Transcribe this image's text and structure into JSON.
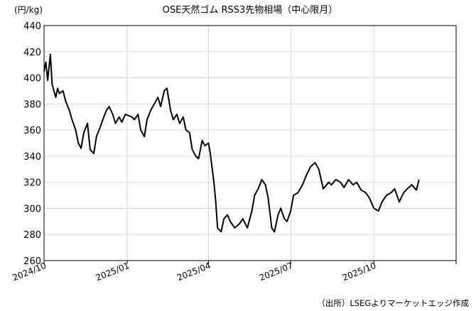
{
  "chart_data": {
    "type": "line",
    "title": "OSE天然ゴム RSS3先物相場（中心限月）",
    "ylabel": "(円/kg)",
    "xlabel": "",
    "source": "（出所）LSEGよりマーケットエッジ作成",
    "ylim": [
      260,
      440
    ],
    "yticks": [
      260,
      280,
      300,
      320,
      340,
      360,
      380,
      400,
      420,
      440
    ],
    "xlim": [
      "2024-10-01",
      "2025-12-31"
    ],
    "xticks": [
      {
        "date": "2024-10-01",
        "label": "2024/10"
      },
      {
        "date": "2025-01-01",
        "label": "2025/01"
      },
      {
        "date": "2025-04-01",
        "label": "2025/04"
      },
      {
        "date": "2025-07-01",
        "label": "2025/07"
      },
      {
        "date": "2025-10-01",
        "label": "2025/10"
      }
    ],
    "grid": true,
    "line_color": "#000000",
    "series": [
      {
        "name": "",
        "x": [
          "2024-10-01",
          "2024-10-03",
          "2024-10-05",
          "2024-10-08",
          "2024-10-10",
          "2024-10-14",
          "2024-10-16",
          "2024-10-18",
          "2024-10-22",
          "2024-10-25",
          "2024-10-29",
          "2024-11-01",
          "2024-11-05",
          "2024-11-08",
          "2024-11-11",
          "2024-11-14",
          "2024-11-18",
          "2024-11-21",
          "2024-11-25",
          "2024-11-28",
          "2024-12-02",
          "2024-12-05",
          "2024-12-09",
          "2024-12-12",
          "2024-12-16",
          "2024-12-19",
          "2024-12-23",
          "2024-12-26",
          "2024-12-30",
          "2025-01-06",
          "2025-01-09",
          "2025-01-13",
          "2025-01-16",
          "2025-01-20",
          "2025-01-23",
          "2025-01-27",
          "2025-01-31",
          "2025-02-04",
          "2025-02-07",
          "2025-02-11",
          "2025-02-14",
          "2025-02-18",
          "2025-02-21",
          "2025-02-25",
          "2025-02-28",
          "2025-03-04",
          "2025-03-07",
          "2025-03-11",
          "2025-03-14",
          "2025-03-18",
          "2025-03-21",
          "2025-03-25",
          "2025-03-28",
          "2025-04-01",
          "2025-04-03",
          "2025-04-07",
          "2025-04-09",
          "2025-04-11",
          "2025-04-15",
          "2025-04-18",
          "2025-04-22",
          "2025-04-25",
          "2025-04-30",
          "2025-05-05",
          "2025-05-09",
          "2025-05-14",
          "2025-05-19",
          "2025-05-22",
          "2025-05-26",
          "2025-05-30",
          "2025-06-03",
          "2025-06-06",
          "2025-06-10",
          "2025-06-13",
          "2025-06-17",
          "2025-06-20",
          "2025-06-24",
          "2025-06-27",
          "2025-07-01",
          "2025-07-04",
          "2025-07-09",
          "2025-07-14",
          "2025-07-18",
          "2025-07-23",
          "2025-07-28",
          "2025-08-01",
          "2025-08-06",
          "2025-08-12",
          "2025-08-15",
          "2025-08-20",
          "2025-08-25",
          "2025-08-29",
          "2025-09-03",
          "2025-09-08",
          "2025-09-12",
          "2025-09-17",
          "2025-09-22",
          "2025-09-26",
          "2025-10-01",
          "2025-10-06",
          "2025-10-10",
          "2025-10-15",
          "2025-10-20",
          "2025-10-24",
          "2025-10-29",
          "2025-11-03",
          "2025-11-07",
          "2025-11-12",
          "2025-11-17",
          "2025-11-20"
        ],
        "values": [
          405,
          412,
          398,
          418,
          395,
          385,
          392,
          388,
          390,
          382,
          375,
          368,
          360,
          350,
          346,
          358,
          365,
          345,
          342,
          355,
          362,
          368,
          375,
          378,
          372,
          365,
          370,
          366,
          372,
          370,
          368,
          372,
          360,
          355,
          368,
          375,
          380,
          385,
          378,
          390,
          392,
          375,
          368,
          372,
          365,
          370,
          360,
          358,
          345,
          340,
          338,
          352,
          348,
          350,
          342,
          320,
          305,
          285,
          282,
          292,
          295,
          290,
          285,
          288,
          292,
          285,
          298,
          310,
          315,
          322,
          318,
          308,
          285,
          282,
          295,
          300,
          292,
          290,
          298,
          310,
          312,
          318,
          325,
          332,
          335,
          330,
          315,
          320,
          318,
          322,
          320,
          316,
          322,
          318,
          320,
          314,
          312,
          308,
          300,
          298,
          305,
          310,
          312,
          315,
          305,
          312,
          315,
          318,
          314,
          322
        ]
      }
    ]
  }
}
